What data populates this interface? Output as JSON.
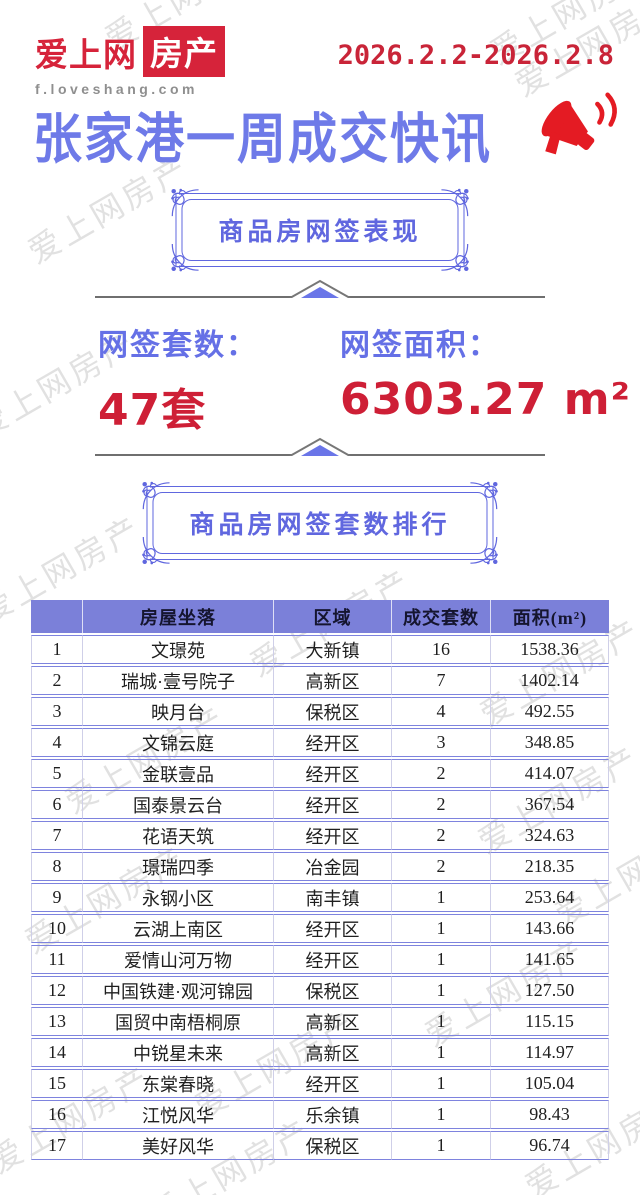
{
  "brand": {
    "name_left": "爱上网",
    "name_right": "房产",
    "url": "f.loveshang.com"
  },
  "header": {
    "date_range": "2026.2.2-2026.2.8",
    "title": "张家港一周成交快讯"
  },
  "section1": {
    "box_title": "商品房网签表现"
  },
  "stats": {
    "count_label": "网签套数：",
    "count_value": "47套",
    "area_label": "网签面积：",
    "area_value": "6303.27 m²"
  },
  "section2": {
    "box_title": "商品房网签套数排行"
  },
  "table": {
    "headers": [
      "",
      "房屋坐落",
      "区域",
      "成交套数",
      "面积(m²)"
    ],
    "rows": [
      [
        "1",
        "文璟苑",
        "大新镇",
        "16",
        "1538.36"
      ],
      [
        "2",
        "瑞城·壹号院子",
        "高新区",
        "7",
        "1402.14"
      ],
      [
        "3",
        "映月台",
        "保税区",
        "4",
        "492.55"
      ],
      [
        "4",
        "文锦云庭",
        "经开区",
        "3",
        "348.85"
      ],
      [
        "5",
        "金联壹品",
        "经开区",
        "2",
        "414.07"
      ],
      [
        "6",
        "国泰景云台",
        "经开区",
        "2",
        "367.54"
      ],
      [
        "7",
        "花语天筑",
        "经开区",
        "2",
        "324.63"
      ],
      [
        "8",
        "璟瑞四季",
        "冶金园",
        "2",
        "218.35"
      ],
      [
        "9",
        "永钢小区",
        "南丰镇",
        "1",
        "253.64"
      ],
      [
        "10",
        "云湖上南区",
        "经开区",
        "1",
        "143.66"
      ],
      [
        "11",
        "爱情山河万物",
        "经开区",
        "1",
        "141.65"
      ],
      [
        "12",
        "中国铁建·观河锦园",
        "保税区",
        "1",
        "127.50"
      ],
      [
        "13",
        "国贸中南梧桐原",
        "高新区",
        "1",
        "115.15"
      ],
      [
        "14",
        "中锐星未来",
        "高新区",
        "1",
        "114.97"
      ],
      [
        "15",
        "东棠春晓",
        "经开区",
        "1",
        "105.04"
      ],
      [
        "16",
        "江悦风华",
        "乐余镇",
        "1",
        "98.43"
      ],
      [
        "17",
        "美好风华",
        "保税区",
        "1",
        "96.74"
      ]
    ]
  },
  "watermark": {
    "text": "爱上网房产"
  },
  "icons": {
    "megaphone": "megaphone-icon",
    "divider_arrow": "divider-arrow-icon",
    "corner_flourish": "corner-flourish-icon"
  },
  "colors": {
    "brand-red": "#d6233a",
    "date-red": "#c92438",
    "title-blue": "#6e7ae8",
    "box-blue": "#6067df",
    "header-bg": "#7b80d9",
    "header-text": "#15152f",
    "value-red": "#ce1f36",
    "row-border": "#7e83de",
    "divider-gray": "#6f6f6f",
    "watermark-gray": "#bdbdbd"
  }
}
